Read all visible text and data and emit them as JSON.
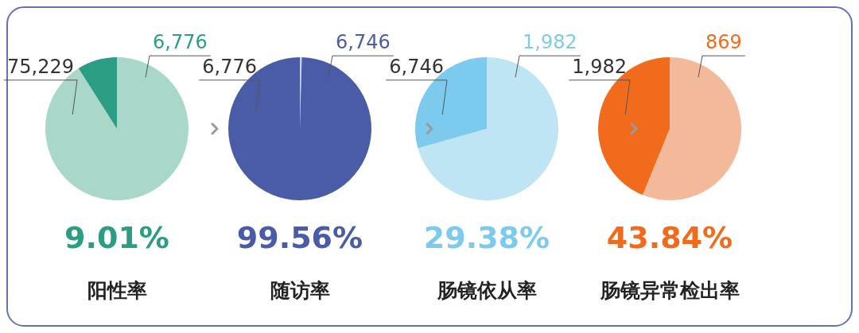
{
  "chart_data": [
    {
      "type": "pie",
      "categories": [
        null,
        null
      ],
      "values": [
        90.99,
        9.01
      ],
      "colors": [
        "#a9d7ca",
        "#2a9d83"
      ],
      "annotations": [
        "75,229",
        "6,776",
        "9.01%"
      ],
      "xlabel": "阳性率"
    },
    {
      "type": "pie",
      "categories": [
        null,
        null
      ],
      "values": [
        0.44,
        99.56
      ],
      "colors": [
        "#c9d1ee",
        "#4a5ca8"
      ],
      "annotations": [
        "6,776",
        "6,746",
        "99.56%"
      ],
      "xlabel": "随访率"
    },
    {
      "type": "pie",
      "categories": [
        null,
        null
      ],
      "values": [
        70.62,
        29.38
      ],
      "colors": [
        "#bfe4f3",
        "#7ccbef"
      ],
      "annotations": [
        "6,746",
        "1,982",
        "29.38%"
      ],
      "xlabel": "肠镜依从率"
    },
    {
      "type": "pie",
      "categories": [
        null,
        null
      ],
      "values": [
        56.16,
        43.84
      ],
      "colors": [
        "#f3b99b",
        "#f26b1c"
      ],
      "annotations": [
        "1,982",
        "869",
        "43.84%"
      ],
      "xlabel": "肠镜异常检出率"
    }
  ]
}
